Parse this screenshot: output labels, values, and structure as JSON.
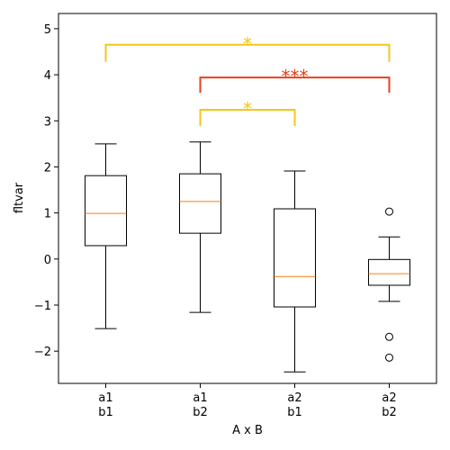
{
  "chart_data": {
    "type": "box",
    "xlabel": "A x B",
    "ylabel": "fltvar",
    "categories": [
      [
        "a1",
        "b1"
      ],
      [
        "a1",
        "b2"
      ],
      [
        "a2",
        "b1"
      ],
      [
        "a2",
        "b2"
      ]
    ],
    "boxes": [
      {
        "whisker_low": -1.51,
        "q1": 0.29,
        "median": 0.99,
        "q3": 1.81,
        "whisker_high": 2.5,
        "outliers": []
      },
      {
        "whisker_low": -1.16,
        "q1": 0.56,
        "median": 1.25,
        "q3": 1.85,
        "whisker_high": 2.54,
        "outliers": []
      },
      {
        "whisker_low": -2.45,
        "q1": -1.04,
        "median": -0.38,
        "q3": 1.09,
        "whisker_high": 1.91,
        "outliers": []
      },
      {
        "whisker_low": -0.92,
        "q1": -0.57,
        "median": -0.32,
        "q3": -0.01,
        "whisker_high": 0.48,
        "outliers": [
          1.03,
          -1.69,
          -2.14
        ]
      }
    ],
    "box_color": "#000000",
    "median_color": "#ff7f0e",
    "ylim": [
      -2.7,
      5.33
    ],
    "yticks": [
      {
        "value": -2,
        "label": "−2"
      },
      {
        "value": -1,
        "label": "−1"
      },
      0,
      1,
      2,
      3,
      4,
      5
    ],
    "annotations": [
      {
        "label": "*",
        "groups": [
          0,
          3
        ],
        "y": 4.65,
        "leg_end": 4.28,
        "color": "#f5c518"
      },
      {
        "label": "***",
        "groups": [
          1,
          3
        ],
        "y": 3.94,
        "leg_end": 3.61,
        "color": "#e8401c"
      },
      {
        "label": "*",
        "groups": [
          1,
          2
        ],
        "y": 3.24,
        "leg_end": 2.89,
        "color": "#f5c518"
      }
    ]
  }
}
